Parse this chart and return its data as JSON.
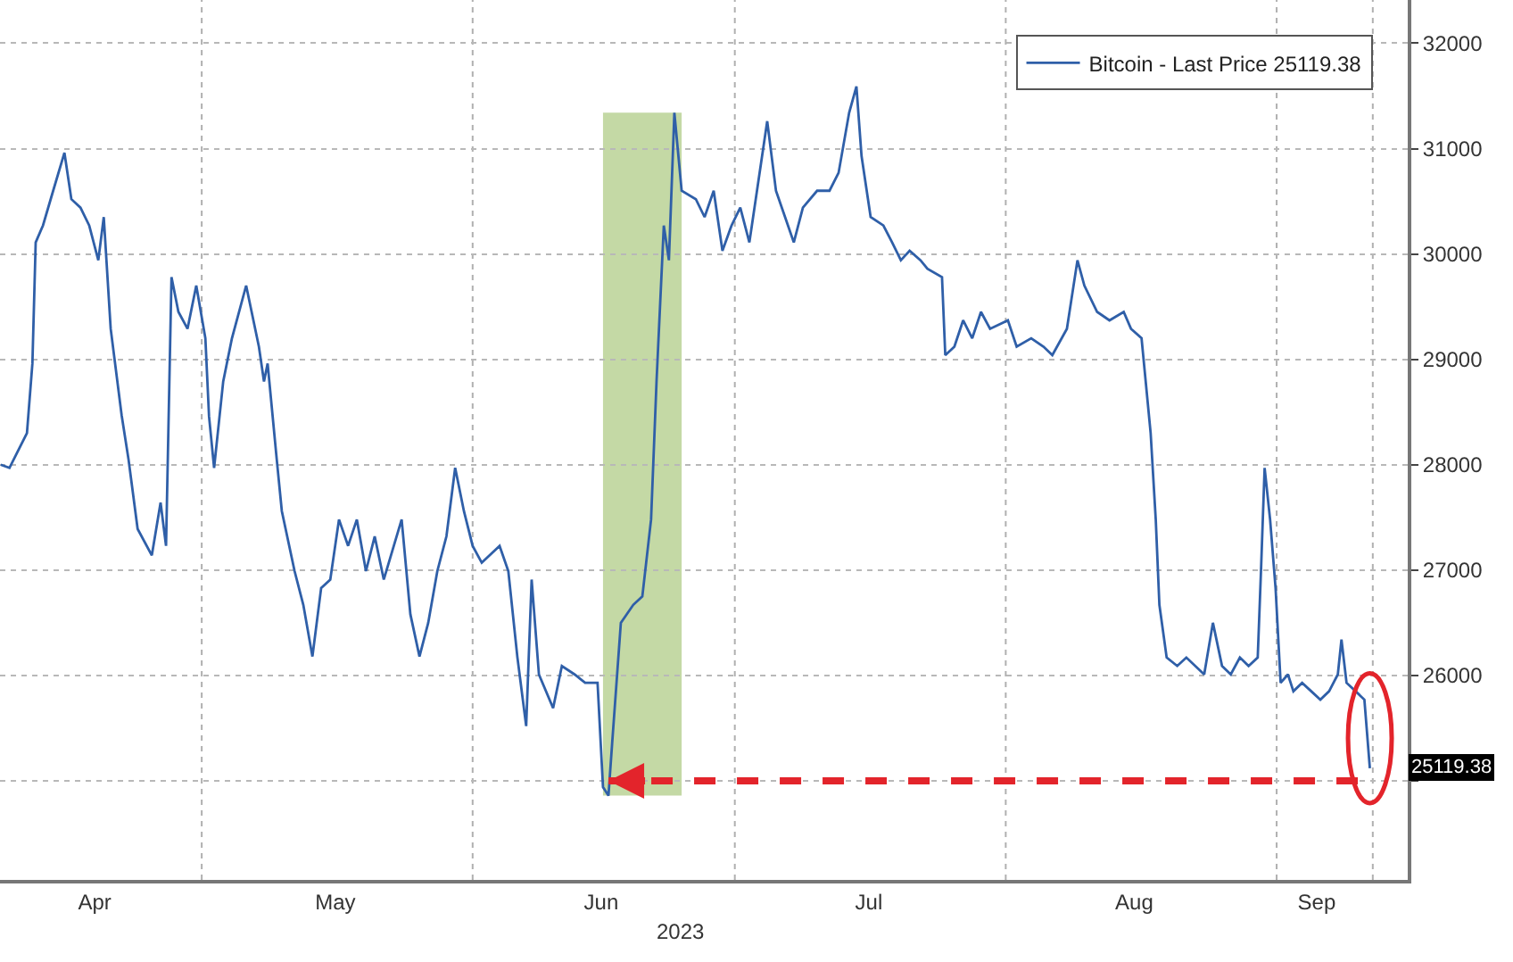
{
  "chart_data": {
    "type": "line",
    "x": [
      "2023-04-08",
      "2023-04-09",
      "2023-04-11",
      "2023-04-11T15:00",
      "2023-04-12",
      "2023-04-12T20:00",
      "2023-04-14",
      "2023-04-15T07:00",
      "2023-04-16T02:00",
      "2023-04-17T03:00",
      "2023-04-18T03:00",
      "2023-04-19T04:00",
      "2023-04-19T19:00",
      "2023-04-20T14:00",
      "2023-04-21T20:00",
      "2023-04-22T15:00",
      "2023-04-23T16:00",
      "2023-04-25T07:00",
      "2023-04-26T07:00",
      "2023-04-26T22:00",
      "2023-04-27T13:00",
      "2023-04-28T08:00",
      "2023-04-29T09:00",
      "2023-04-30T09:00",
      "2023-05-01T10:00",
      "2023-05-01T20:00",
      "2023-05-02T10:00",
      "2023-05-03T11:00",
      "2023-05-04T11:00",
      "2023-05-06T02:00",
      "2023-05-07T13:00",
      "2023-05-08T03:00",
      "2023-05-08T13:00",
      "2023-05-09T14:00",
      "2023-05-10T04:00",
      "2023-05-11T15:00",
      "2023-05-12T15:00",
      "2023-05-13T16:00",
      "2023-05-14T16:00",
      "2023-05-15T17:00",
      "2023-05-16T17:00",
      "2023-05-17T18:00",
      "2023-05-18T18:00",
      "2023-05-19T19:00",
      "2023-05-20T19:00",
      "2023-05-21T20:00",
      "2023-05-23T21:00",
      "2023-05-24T21:00",
      "2023-05-25T22:00",
      "2023-05-26T22:00",
      "2023-05-27T23:00",
      "2023-05-29",
      "2023-05-30",
      "2023-05-31",
      "2023-06-01",
      "2023-06-02T01:00",
      "2023-06-04T02:00",
      "2023-06-05T02:00",
      "2023-06-06T03:00",
      "2023-06-07T03:00",
      "2023-06-07T18:00",
      "2023-06-08T14:00",
      "2023-06-10T05:00",
      "2023-06-11T05:00",
      "2023-06-12T16:00",
      "2023-06-13T21:00",
      "2023-06-15T07:00",
      "2023-06-15T22:00",
      "2023-06-16T13:00",
      "2023-06-16T23:00",
      "2023-06-17T23:00",
      "2023-06-19T09:00",
      "2023-06-20T10:00",
      "2023-06-21T10:00",
      "2023-06-22T01:00",
      "2023-06-22T21:00",
      "2023-06-23T11:00",
      "2023-06-24T02:00",
      "2023-06-24T22:00",
      "2023-06-26T13:00",
      "2023-06-27T13:00",
      "2023-06-28T14:00",
      "2023-06-29T14:00",
      "2023-06-30T15:00",
      "2023-07-01T15:00",
      "2023-07-02T16:00",
      "2023-07-04T17:00",
      "2023-07-05T17:00",
      "2023-07-06T18:00",
      "2023-07-07T18:00",
      "2023-07-08T19:00",
      "2023-07-10T10:00",
      "2023-07-11T20:00",
      "2023-07-12T21:00",
      "2023-07-14T02:00",
      "2023-07-14T22:00",
      "2023-07-15T12:00",
      "2023-07-16T13:00",
      "2023-07-18",
      "2023-07-19",
      "2023-07-20",
      "2023-07-21",
      "2023-07-22T06:00",
      "2023-07-23T01:00",
      "2023-07-24T17:00",
      "2023-07-25T02:00",
      "2023-07-26T03:00",
      "2023-07-27T03:00",
      "2023-07-28T04:00",
      "2023-07-29T04:00",
      "2023-07-30T05:00",
      "2023-08-01T06:00",
      "2023-08-02T06:00",
      "2023-08-03T22:00",
      "2023-08-05T08:00",
      "2023-08-06T08:00",
      "2023-08-08",
      "2023-08-09T05:00",
      "2023-08-10",
      "2023-08-11T11:00",
      "2023-08-12T21:00",
      "2023-08-14T12:00",
      "2023-08-15T08:00",
      "2023-08-16T13:00",
      "2023-08-17T14:00",
      "2023-08-18T04:00",
      "2023-08-18T14:00",
      "2023-08-19T10:00",
      "2023-08-20T15:00",
      "2023-08-21T16:00",
      "2023-08-23T17:00",
      "2023-08-24T17:00",
      "2023-08-25T18:00",
      "2023-08-26T18:00",
      "2023-08-27T19:00",
      "2023-08-28T19:00",
      "2023-08-29T20:00",
      "2023-08-30T05:00",
      "2023-08-30T15:00",
      "2023-08-31T06:00",
      "2023-08-31T21:00",
      "2023-09-01T11:00",
      "2023-09-02T07:00",
      "2023-09-02T22:00",
      "2023-09-03T22:00",
      "2023-09-04T23:00",
      "2023-09-06",
      "2023-09-07",
      "2023-09-08",
      "2023-09-08T10:00",
      "2023-09-09",
      "2023-09-10T01:00",
      "2023-09-11T01:00",
      "2023-09-11T16:00"
    ],
    "series": [
      {
        "name": "Bitcoin - Last Price 25119.38",
        "color": "#2f5fa8",
        "values": [
          28000,
          27970,
          28300,
          28960,
          30110,
          30270,
          30600,
          30960,
          30520,
          30440,
          30270,
          29940,
          30350,
          29290,
          28470,
          28050,
          27390,
          27140,
          27640,
          27230,
          29780,
          29450,
          29290,
          29700,
          29200,
          28460,
          27970,
          28790,
          29200,
          29700,
          29120,
          28790,
          28960,
          28050,
          27560,
          26990,
          26670,
          26180,
          26830,
          26910,
          27480,
          27230,
          27480,
          26990,
          27320,
          26910,
          27480,
          26580,
          26180,
          26500,
          26990,
          27320,
          27970,
          27560,
          27230,
          27070,
          27230,
          26990,
          26170,
          25520,
          26910,
          26010,
          25690,
          26090,
          26010,
          25930,
          25930,
          24940,
          24860,
          25350,
          26500,
          26670,
          26750,
          27480,
          28790,
          30270,
          29940,
          31340,
          30600,
          30520,
          30350,
          30600,
          30030,
          30270,
          30440,
          30110,
          31260,
          30600,
          30350,
          30110,
          30440,
          30600,
          30600,
          30770,
          31340,
          31590,
          30930,
          30350,
          30270,
          30110,
          29940,
          30030,
          29940,
          29860,
          29780,
          29040,
          29120,
          29370,
          29200,
          29450,
          29290,
          29370,
          29120,
          29200,
          29120,
          29040,
          29290,
          29940,
          29700,
          29450,
          29370,
          29450,
          29290,
          29200,
          28300,
          27480,
          26670,
          26170,
          26090,
          26170,
          26010,
          26500,
          26090,
          26010,
          26170,
          26090,
          26170,
          26990,
          27970,
          27480,
          26830,
          25930,
          26010,
          25850,
          25930,
          25850,
          25770,
          25850,
          26010,
          26340,
          25930,
          25850,
          25770,
          25119.38
        ]
      }
    ],
    "ref_lines": [
      {
        "axis": "y",
        "value": 25000,
        "color": "#e3242b",
        "line_style": "dashed"
      }
    ],
    "xlim": [
      "2023-04-07T22:00",
      "2023-09-16"
    ],
    "xticks": [
      {
        "value": "2023-04-18T18:00",
        "label": "Apr"
      },
      {
        "value": "2023-05-01",
        "label": null
      },
      {
        "value": "2023-05-16T07:00",
        "label": "May"
      },
      {
        "value": "2023-06-01",
        "label": null
      },
      {
        "value": "2023-06-15T17:00",
        "label": "Jun"
      },
      {
        "value": "2023-07-01",
        "label": null
      },
      {
        "value": "2023-07-16T08:00",
        "label": "Jul"
      },
      {
        "value": "2023-08-01",
        "label": null
      },
      {
        "value": "2023-08-15T17:00",
        "label": "Aug"
      },
      {
        "value": "2023-09-01",
        "label": null
      },
      {
        "value": "2023-09-05T14:00",
        "label": "Sep"
      },
      {
        "value": "2023-09-12",
        "label": null
      }
    ],
    "ylim": [
      24060,
      32410
    ],
    "yticks": [
      {
        "value": 25000,
        "label": null
      },
      26000,
      27000,
      28000,
      29000,
      30000,
      31000,
      32000
    ],
    "bands": [
      {
        "axis": "x",
        "from": "2023-06-15T22:00",
        "to": "2023-06-24T22:00",
        "color": "#b5cf8e"
      }
    ],
    "annotations": [
      "2023",
      "25119.38"
    ],
    "grid": true,
    "legend": "top right"
  }
}
